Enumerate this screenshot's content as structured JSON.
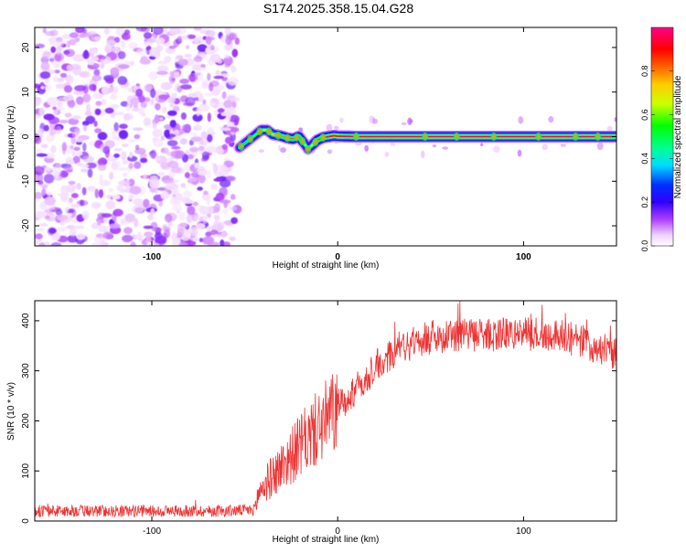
{
  "title": "S174.2025.358.15.04.G28",
  "chart_data": [
    {
      "type": "heatmap",
      "name": "spectrogram",
      "xlabel": "Height of straight line (km)",
      "ylabel": "Frequency (Hz)",
      "xlim": [
        -163,
        150
      ],
      "ylim": [
        -24.5,
        24.5
      ],
      "x_ticks": [
        -100,
        0,
        100
      ],
      "y_ticks": [
        -20,
        -10,
        0,
        10,
        20
      ],
      "noise_region_x": [
        -163,
        -54
      ],
      "signal_track": {
        "x": [
          -53,
          -50,
          -47,
          -44,
          -41,
          -38,
          -35,
          -31,
          -27,
          -24,
          -21,
          -18,
          -16,
          -14,
          -11,
          -8,
          -5,
          -2,
          0,
          10,
          30,
          50,
          70,
          90,
          110,
          130,
          150
        ],
        "freq": [
          -2.5,
          -1.5,
          -0.5,
          0.5,
          1.5,
          1.5,
          0.5,
          0.2,
          -0.3,
          -0.5,
          0,
          -1.5,
          -2.8,
          -2.0,
          -0.8,
          -0.2,
          0,
          0.2,
          0.1,
          0,
          0,
          0,
          0,
          0,
          0,
          0,
          0
        ],
        "amplitude": [
          0.5,
          0.55,
          0.6,
          0.6,
          0.7,
          0.7,
          0.75,
          0.8,
          0.85,
          0.85,
          0.9,
          0.75,
          0.55,
          0.7,
          0.85,
          0.9,
          0.95,
          0.95,
          0.95,
          0.95,
          0.95,
          0.95,
          0.95,
          0.95,
          0.95,
          0.95,
          0.95
        ]
      },
      "colorbar": {
        "label": "Normalized spectral amplitude",
        "range": [
          0,
          1
        ],
        "ticks": [
          0.0,
          0.2,
          0.4,
          0.6,
          0.8
        ],
        "tick_labels": [
          "0.0",
          "0.2",
          "0.4",
          "0.6",
          "0.8"
        ]
      }
    },
    {
      "type": "line",
      "name": "snr",
      "xlabel": "Height of straight line (km)",
      "ylabel": "SNR (10 * v/v)",
      "xlim": [
        -163,
        150
      ],
      "ylim": [
        0,
        440
      ],
      "x_ticks": [
        -100,
        0,
        100
      ],
      "y_ticks": [
        0,
        100,
        200,
        300,
        400
      ],
      "color": "#ee3333",
      "envelope": {
        "x": [
          -163,
          -100,
          -60,
          -45,
          -42,
          -35,
          -25,
          -15,
          -5,
          5,
          15,
          25,
          35,
          45,
          60,
          80,
          100,
          120,
          135,
          150
        ],
        "y": [
          20,
          20,
          20,
          22,
          60,
          90,
          130,
          170,
          205,
          245,
          285,
          320,
          350,
          365,
          370,
          372,
          375,
          370,
          355,
          330
        ]
      },
      "noise_amplitude": 12
    }
  ],
  "colors": {
    "trace": "#ee3333",
    "axis": "#000000",
    "colormap": [
      "#ffffff",
      "#ff00ff",
      "#6600ff",
      "#0000ff",
      "#00ffff",
      "#00ff00",
      "#ffff00",
      "#ff8800",
      "#ff0000",
      "#ff0099"
    ]
  }
}
